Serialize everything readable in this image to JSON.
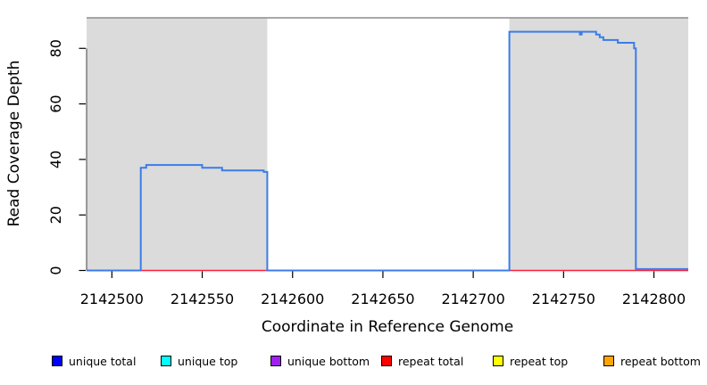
{
  "axes": {
    "x_label": "Coordinate in Reference Genome",
    "y_label": "Read Coverage Depth"
  },
  "legend": {
    "items": [
      {
        "label": "unique total",
        "color": "#0000FF"
      },
      {
        "label": "unique top",
        "color": "#00FFFF"
      },
      {
        "label": "unique bottom",
        "color": "#A020F0"
      },
      {
        "label": "repeat total",
        "color": "#FF0000"
      },
      {
        "label": "repeat top",
        "color": "#FFFF00"
      },
      {
        "label": "repeat bottom",
        "color": "#FFA500"
      }
    ]
  },
  "chart_data": {
    "type": "line",
    "title": "",
    "xlabel": "Coordinate in Reference Genome",
    "ylabel": "Read Coverage Depth",
    "xlim": [
      2142486,
      2142819
    ],
    "ylim": [
      0,
      91
    ],
    "x_ticks": [
      2142500,
      2142550,
      2142600,
      2142650,
      2142700,
      2142750,
      2142800
    ],
    "y_ticks": [
      0,
      20,
      40,
      60,
      80
    ],
    "grid": false,
    "legend_position": "bottom",
    "top_boundary_value": 91,
    "top_boundary_color": "#8c8c8c",
    "shaded_regions": [
      {
        "x0": 2142486,
        "x1": 2142586,
        "color": "#dbdbdb"
      },
      {
        "x0": 2142720,
        "x1": 2142819,
        "color": "#dbdbdb"
      }
    ],
    "series": [
      {
        "name": "repeat total",
        "color": "#ff1f3c",
        "width": 1.4,
        "points": [
          [
            2142486,
            0
          ],
          [
            2142819,
            0
          ]
        ]
      },
      {
        "name": "unique total",
        "color": "#3b7cea",
        "width": 2,
        "points": [
          [
            2142486,
            0
          ],
          [
            2142516,
            0
          ],
          [
            2142516,
            37
          ],
          [
            2142519,
            37
          ],
          [
            2142519,
            38
          ],
          [
            2142550,
            38
          ],
          [
            2142550,
            37
          ],
          [
            2142561,
            37
          ],
          [
            2142561,
            36
          ],
          [
            2142584,
            36
          ],
          [
            2142584,
            35.5
          ],
          [
            2142586,
            35.5
          ],
          [
            2142586,
            0
          ],
          [
            2142720,
            0
          ],
          [
            2142720,
            86
          ],
          [
            2142759,
            86
          ],
          [
            2142759,
            85
          ],
          [
            2142760,
            85
          ],
          [
            2142760,
            86
          ],
          [
            2142768,
            86
          ],
          [
            2142768,
            85
          ],
          [
            2142770,
            85
          ],
          [
            2142770,
            84
          ],
          [
            2142772,
            84
          ],
          [
            2142772,
            83
          ],
          [
            2142780,
            83
          ],
          [
            2142780,
            82
          ],
          [
            2142789,
            82
          ],
          [
            2142789,
            80
          ],
          [
            2142790,
            80
          ],
          [
            2142790,
            0.5
          ],
          [
            2142819,
            0.5
          ]
        ]
      }
    ]
  }
}
